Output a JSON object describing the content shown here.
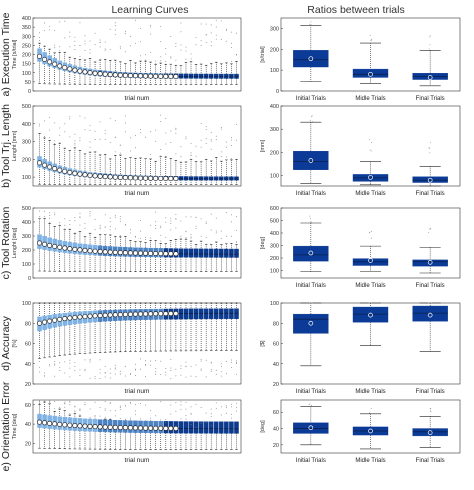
{
  "headers": {
    "left": "Learning Curves",
    "right": "Ratios between trials"
  },
  "colors": {
    "light": "#7fb2e5",
    "mid": "#4a82c4",
    "dark": "#0c3a8c",
    "ratio_box": "#0b3b96",
    "mean_marker": "#ffffff",
    "whisker": "#222222",
    "outlier": "#888888"
  },
  "chart_data": [
    {
      "id": "a-curve",
      "type": "box",
      "row_label": "a) Execution Time",
      "ylabel": "Time [s/trial]",
      "xlabel": "trial num",
      "ylim": [
        0,
        400
      ],
      "yticks": [
        0,
        50,
        100,
        150,
        200,
        250,
        300,
        350,
        400
      ],
      "n_trials": 40,
      "median_start": 190,
      "median_end": 78,
      "decay": 0.16,
      "iqr_start": 70,
      "iqr_end": 24,
      "whisker_lo": 40,
      "whisker_hi": 250,
      "outlier_hi": 390
    },
    {
      "id": "a-ratio",
      "type": "box",
      "ylabel": "[s/trial]",
      "ylim": [
        0,
        350
      ],
      "yticks": [
        0,
        100,
        200,
        300
      ],
      "categories": [
        "Initial Trials",
        "Midle Trials",
        "Final Trials"
      ],
      "boxes": [
        {
          "q1": 115,
          "median": 150,
          "q3": 195,
          "mean": 155,
          "lo": 45,
          "hi": 315
        },
        {
          "q1": 65,
          "median": 80,
          "q3": 105,
          "mean": 80,
          "lo": 35,
          "hi": 230
        },
        {
          "q1": 55,
          "median": 70,
          "q3": 85,
          "mean": 65,
          "lo": 25,
          "hi": 195
        }
      ]
    },
    {
      "id": "b-curve",
      "type": "box",
      "row_label": "b) Tool Trj. Length",
      "ylabel": "Lenght [mm]",
      "xlabel": "trial num",
      "ylim": [
        50,
        500
      ],
      "yticks": [
        100,
        200,
        300,
        400,
        500
      ],
      "n_trials": 40,
      "median_start": 180,
      "median_end": 90,
      "decay": 0.15,
      "iqr_start": 60,
      "iqr_end": 20,
      "whisker_lo": 60,
      "whisker_hi": 330,
      "outlier_hi": 450
    },
    {
      "id": "b-ratio",
      "type": "box",
      "ylabel": "[mm]",
      "ylim": [
        55,
        400
      ],
      "yticks": [
        100,
        200,
        300,
        400
      ],
      "categories": [
        "Initial Trials",
        "Midle Trials",
        "Final Trials"
      ],
      "boxes": [
        {
          "q1": 125,
          "median": 160,
          "q3": 205,
          "mean": 165,
          "lo": 65,
          "hi": 330
        },
        {
          "q1": 75,
          "median": 90,
          "q3": 105,
          "mean": 92,
          "lo": 60,
          "hi": 160
        },
        {
          "q1": 70,
          "median": 80,
          "q3": 95,
          "mean": 80,
          "lo": 55,
          "hi": 140
        }
      ]
    },
    {
      "id": "c-curve",
      "type": "box",
      "row_label": "c) Tool Rotation",
      "ylabel": "Lenght [deg]",
      "xlabel": "",
      "ylim": [
        0,
        500
      ],
      "yticks": [
        0,
        100,
        200,
        300,
        400,
        500
      ],
      "n_trials": 40,
      "median_start": 250,
      "median_end": 170,
      "decay": 0.12,
      "iqr_start": 100,
      "iqr_end": 60,
      "whisker_lo": 50,
      "whisker_hi": 420,
      "outlier_hi": 480
    },
    {
      "id": "c-ratio",
      "type": "box",
      "ylabel": "[deg]",
      "ylim": [
        40,
        600
      ],
      "yticks": [
        100,
        200,
        300,
        400,
        500,
        600
      ],
      "categories": [
        "Initial Trials",
        "Midle Trials",
        "Final Trials"
      ],
      "boxes": [
        {
          "q1": 175,
          "median": 225,
          "q3": 295,
          "mean": 240,
          "lo": 90,
          "hi": 480
        },
        {
          "q1": 140,
          "median": 170,
          "q3": 195,
          "mean": 180,
          "lo": 90,
          "hi": 295
        },
        {
          "q1": 135,
          "median": 170,
          "q3": 185,
          "mean": 165,
          "lo": 80,
          "hi": 285
        }
      ]
    },
    {
      "id": "d-curve",
      "type": "box",
      "row_label": "d) Accuracy",
      "ylabel": "[%]",
      "xlabel": "trial num",
      "ylim": [
        20,
        100
      ],
      "yticks": [
        20,
        40,
        60,
        80,
        100
      ],
      "n_trials": 40,
      "median_start": 80,
      "median_end": 90,
      "decay": 0.12,
      "iqr_start": 14,
      "iqr_end": 10,
      "whisker_lo": 45,
      "whisker_hi": 100,
      "outlier_lo": 25,
      "inverted": true
    },
    {
      "id": "d-ratio",
      "type": "box",
      "ylabel": "[$]",
      "ylim": [
        20,
        100
      ],
      "yticks": [
        20,
        40,
        60,
        80,
        100
      ],
      "categories": [
        "Initial Trials",
        "Midle Trials",
        "Final Trials"
      ],
      "boxes": [
        {
          "q1": 70,
          "median": 84,
          "q3": 89,
          "mean": 80,
          "lo": 38,
          "hi": 100
        },
        {
          "q1": 81,
          "median": 89,
          "q3": 96,
          "mean": 88,
          "lo": 58,
          "hi": 100
        },
        {
          "q1": 82,
          "median": 90,
          "q3": 97,
          "mean": 88,
          "lo": 52,
          "hi": 100
        }
      ]
    },
    {
      "id": "e-curve",
      "type": "box",
      "row_label": "e) Orientation Error",
      "ylabel": "Time [deg]",
      "xlabel": "trial num",
      "ylim": [
        10,
        65
      ],
      "yticks": [
        20,
        40,
        60
      ],
      "n_trials": 40,
      "median_start": 42,
      "median_end": 35,
      "decay": 0.1,
      "iqr_start": 14,
      "iqr_end": 12,
      "whisker_lo": 15,
      "whisker_hi": 60,
      "outlier_hi": 64
    },
    {
      "id": "e-ratio",
      "type": "box",
      "ylabel": "[deg]",
      "ylim": [
        10,
        75
      ],
      "yticks": [
        20,
        40,
        60
      ],
      "categories": [
        "Initial Trials",
        "Midle Trials",
        "Final Trials"
      ],
      "boxes": [
        {
          "q1": 34,
          "median": 40,
          "q3": 47,
          "mean": 41,
          "lo": 20,
          "hi": 67
        },
        {
          "q1": 32,
          "median": 37,
          "q3": 42,
          "mean": 37,
          "lo": 15,
          "hi": 58
        },
        {
          "q1": 31,
          "median": 36,
          "q3": 40,
          "mean": 35,
          "lo": 17,
          "hi": 55
        }
      ]
    }
  ]
}
